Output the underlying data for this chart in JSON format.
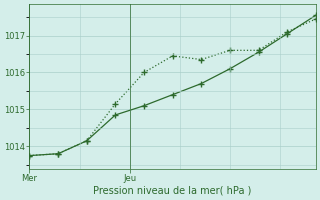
{
  "line1_x": [
    0,
    1,
    2,
    3,
    4,
    5,
    6,
    7,
    8,
    9,
    10
  ],
  "line1_y": [
    1013.75,
    1013.8,
    1014.15,
    1015.15,
    1016.0,
    1016.45,
    1016.35,
    1016.6,
    1016.6,
    1017.1,
    1017.45
  ],
  "line2_x": [
    0,
    1,
    2,
    3,
    4,
    5,
    6,
    7,
    8,
    9,
    10
  ],
  "line2_y": [
    1013.75,
    1013.8,
    1014.15,
    1014.85,
    1015.1,
    1015.4,
    1015.7,
    1016.1,
    1016.55,
    1017.05,
    1017.55
  ],
  "line_color": "#2d6a2d",
  "background_color": "#d4eeea",
  "grid_color": "#aacfca",
  "ylabel_ticks": [
    1014,
    1015,
    1016,
    1017
  ],
  "xlabel": "Pression niveau de la mer( hPa )",
  "ylim": [
    1013.4,
    1017.85
  ],
  "xlim": [
    0,
    10
  ],
  "mer_x": 0,
  "jeu_x": 3.5
}
